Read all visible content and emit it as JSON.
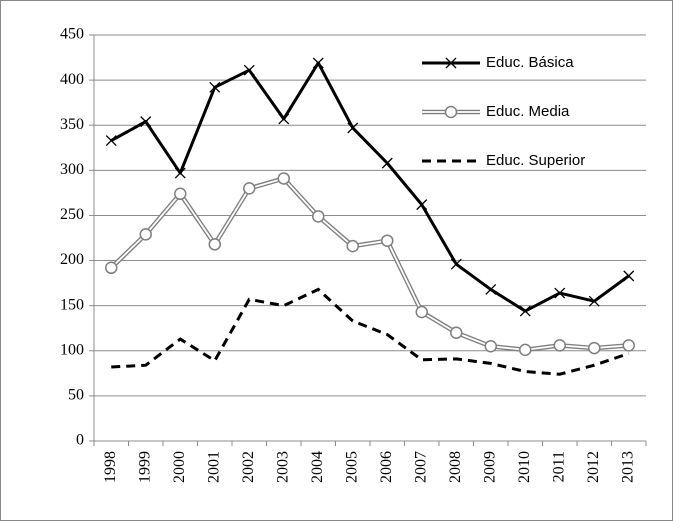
{
  "chart_data": {
    "type": "line",
    "categories": [
      "1998",
      "1999",
      "2000",
      "2001",
      "2002",
      "2003",
      "2004",
      "2005",
      "2006",
      "2007",
      "2008",
      "2009",
      "2010",
      "2011",
      "2012",
      "2013"
    ],
    "series": [
      {
        "name": "Educ. Básica",
        "color": "#000000",
        "values": [
          333,
          354,
          297,
          392,
          411,
          357,
          419,
          347,
          308,
          262,
          196,
          168,
          144,
          164,
          155,
          183
        ]
      },
      {
        "name": "Educ. Media",
        "color": "#7f7f7f",
        "values": [
          192,
          229,
          274,
          218,
          280,
          291,
          249,
          216,
          222,
          143,
          120,
          105,
          101,
          106,
          103,
          106
        ]
      },
      {
        "name": "Educ. Superior",
        "color": "#000000",
        "values": [
          82,
          84,
          113,
          89,
          157,
          150,
          168,
          133,
          118,
          90,
          91,
          86,
          77,
          74,
          84,
          97
        ]
      }
    ],
    "ylim": [
      0,
      450
    ],
    "yticks": [
      0,
      50,
      100,
      150,
      200,
      250,
      300,
      350,
      400,
      450
    ],
    "grid": true,
    "legend": "top-right"
  }
}
